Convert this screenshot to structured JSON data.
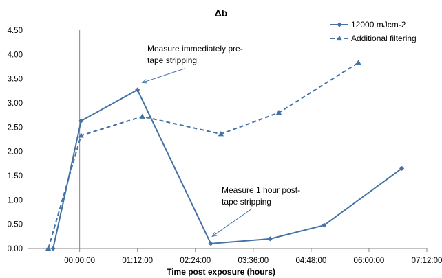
{
  "chart_data": {
    "type": "line",
    "title": "Δb",
    "xlabel": "Time post exposure (hours)",
    "ylabel": "",
    "xlim": [
      -1.08,
      7.2
    ],
    "ylim": [
      0,
      4.5
    ],
    "x_ticks": [
      0,
      1.2,
      2.4,
      3.6,
      4.8,
      6.0,
      7.2
    ],
    "x_tick_labels": [
      "00:00:00",
      "01:12:00",
      "02:24:00",
      "03:36:00",
      "04:48:00",
      "06:00:00",
      "07:12:00"
    ],
    "y_ticks": [
      0,
      0.5,
      1.0,
      1.5,
      2.0,
      2.5,
      3.0,
      3.5,
      4.0,
      4.5
    ],
    "y_tick_labels": [
      "0.00",
      "0.50",
      "1.00",
      "1.50",
      "2.00",
      "2.50",
      "3.00",
      "3.50",
      "4.00",
      "4.50"
    ],
    "legend_position": "top-right",
    "series": [
      {
        "name": "12000 mJcm-2",
        "style": "solid",
        "marker": "diamond",
        "color": "#4472A4",
        "x": [
          -0.55,
          0.03,
          1.2,
          2.72,
          3.95,
          5.07,
          6.68
        ],
        "y": [
          0.0,
          2.63,
          3.27,
          0.1,
          0.2,
          0.48,
          1.65
        ]
      },
      {
        "name": "Additional filtering",
        "style": "dashed",
        "marker": "triangle",
        "color": "#4472A4",
        "x": [
          -0.65,
          0.03,
          1.3,
          2.93,
          4.13,
          5.78
        ],
        "y": [
          0.0,
          2.33,
          2.72,
          2.36,
          2.8,
          3.83
        ]
      }
    ],
    "annotations": [
      {
        "lines": [
          "Measure immediately pre-",
          "tape stripping"
        ],
        "arrow_to": {
          "x": 1.3,
          "y": 3.42
        }
      },
      {
        "lines": [
          "Measure 1 hour post-",
          "tape stripping"
        ],
        "arrow_to": {
          "x": 2.75,
          "y": 0.25
        }
      }
    ]
  }
}
